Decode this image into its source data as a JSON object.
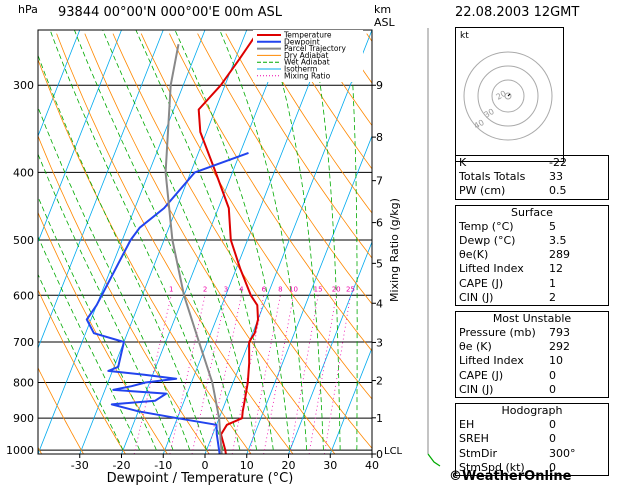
{
  "header": {
    "hpa_unit": "hPa",
    "km_unit": "km",
    "asl_unit": "ASL",
    "station": "93844  00°00'N  000°00'E  00m  ASL",
    "datetime": "22.08.2003  12GMT"
  },
  "colors": {
    "temperature": "#dd0000",
    "dewpoint": "#2244ee",
    "parcel": "#888888",
    "dry_adiabat": "#ff8800",
    "wet_adiabat": "#00aa00",
    "isotherm": "#00aaee",
    "mixing_ratio": "#ee00aa"
  },
  "chart_data": {
    "type": "line",
    "title": "93844  00°00'N  000°00'E  00m  ASL",
    "xlabel": "Dewpoint / Temperature (°C)",
    "ylabel_right": "Mixing Ratio (g/kg)",
    "x_ticks": [
      "-30",
      "-20",
      "-10",
      "0",
      "10",
      "20",
      "30",
      "40"
    ],
    "xlim": [
      -40,
      40
    ],
    "p_ticks": [
      "300",
      "400",
      "500",
      "600",
      "700",
      "800",
      "900",
      "1000"
    ],
    "plim": [
      250,
      1013
    ],
    "km_ticks": [
      {
        "p": 300,
        "label": "9"
      },
      {
        "p": 356,
        "label": "8"
      },
      {
        "p": 411,
        "label": "7"
      },
      {
        "p": 472,
        "label": "6"
      },
      {
        "p": 540,
        "label": "5"
      },
      {
        "p": 616,
        "label": "4"
      },
      {
        "p": 701,
        "label": "3"
      },
      {
        "p": 795,
        "label": "2"
      },
      {
        "p": 899,
        "label": "1"
      },
      {
        "p": 1013,
        "label": "0"
      }
    ],
    "lcl_label": "LCL",
    "lcl_p": 1000,
    "mixing_ratio_labels": [
      "1",
      "2",
      "3",
      "4",
      "6",
      "8",
      "10",
      "15",
      "20",
      "25"
    ],
    "legend": [
      "Temperature",
      "Dewpoint",
      "Parcel Trajectory",
      "Dry Adiabat",
      "Wet Adiabat",
      "Isotherm",
      "Mixing Ratio"
    ],
    "legend_position": "top-right",
    "series": [
      {
        "name": "Temperature",
        "points": [
          [
            1013,
            5
          ],
          [
            1000,
            4.5
          ],
          [
            950,
            2
          ],
          [
            920,
            2.5
          ],
          [
            900,
            5.5
          ],
          [
            880,
            5
          ],
          [
            850,
            4.5
          ],
          [
            800,
            3.5
          ],
          [
            750,
            2
          ],
          [
            700,
            0
          ],
          [
            680,
            0.5
          ],
          [
            650,
            0
          ],
          [
            620,
            -1.5
          ],
          [
            600,
            -4
          ],
          [
            550,
            -9
          ],
          [
            500,
            -14
          ],
          [
            450,
            -17.5
          ],
          [
            400,
            -24
          ],
          [
            350,
            -31.5
          ],
          [
            325,
            -34
          ],
          [
            300,
            -31
          ],
          [
            275,
            -29
          ],
          [
            250,
            -27
          ]
        ]
      },
      {
        "name": "Dewpoint",
        "points": [
          [
            1013,
            3.5
          ],
          [
            1000,
            3
          ],
          [
            950,
            1
          ],
          [
            920,
            0
          ],
          [
            900,
            -10
          ],
          [
            880,
            -20
          ],
          [
            860,
            -27
          ],
          [
            850,
            -17
          ],
          [
            830,
            -15
          ],
          [
            820,
            -28
          ],
          [
            810,
            -24
          ],
          [
            800,
            -21
          ],
          [
            790,
            -14
          ],
          [
            780,
            -22
          ],
          [
            770,
            -31
          ],
          [
            760,
            -29
          ],
          [
            700,
            -30
          ],
          [
            680,
            -38
          ],
          [
            650,
            -41
          ],
          [
            620,
            -40
          ],
          [
            500,
            -38
          ],
          [
            480,
            -37
          ],
          [
            450,
            -33
          ],
          [
            400,
            -29
          ],
          [
            375,
            -18
          ]
        ]
      },
      {
        "name": "Parcel Trajectory",
        "points": [
          [
            1013,
            4
          ],
          [
            900,
            0
          ],
          [
            800,
            -5
          ],
          [
            700,
            -12
          ],
          [
            600,
            -20
          ],
          [
            500,
            -28
          ],
          [
            400,
            -36
          ],
          [
            300,
            -43
          ],
          [
            262,
            -45
          ]
        ]
      }
    ]
  },
  "hodograph": {
    "unit": "kt",
    "rings": [
      "10",
      "20",
      "30",
      "40"
    ]
  },
  "indices": [
    {
      "k": "K",
      "v": "-22"
    },
    {
      "k": "Totals Totals",
      "v": "33"
    },
    {
      "k": "PW (cm)",
      "v": "0.5"
    }
  ],
  "surface": {
    "title": "Surface",
    "rows": [
      {
        "k": "Temp (°C)",
        "v": "5"
      },
      {
        "k": "Dewp (°C)",
        "v": "3.5"
      },
      {
        "k": "θe(K)",
        "v": "289"
      },
      {
        "k": "Lifted Index",
        "v": "12"
      },
      {
        "k": "CAPE (J)",
        "v": "1"
      },
      {
        "k": "CIN (J)",
        "v": "2"
      }
    ]
  },
  "unstable": {
    "title": "Most Unstable",
    "rows": [
      {
        "k": "Pressure (mb)",
        "v": "793"
      },
      {
        "k": "θe (K)",
        "v": "292"
      },
      {
        "k": "Lifted Index",
        "v": "10"
      },
      {
        "k": "CAPE (J)",
        "v": "0"
      },
      {
        "k": "CIN (J)",
        "v": "0"
      }
    ]
  },
  "hodo_table": {
    "title": "Hodograph",
    "rows": [
      {
        "k": "EH",
        "v": "0"
      },
      {
        "k": "SREH",
        "v": "0"
      },
      {
        "k": "StmDir",
        "v": "300°"
      },
      {
        "k": "StmSpd (kt)",
        "v": "0"
      }
    ]
  },
  "brand": {
    "copyright": "©",
    "name": "WeatherOnline"
  }
}
